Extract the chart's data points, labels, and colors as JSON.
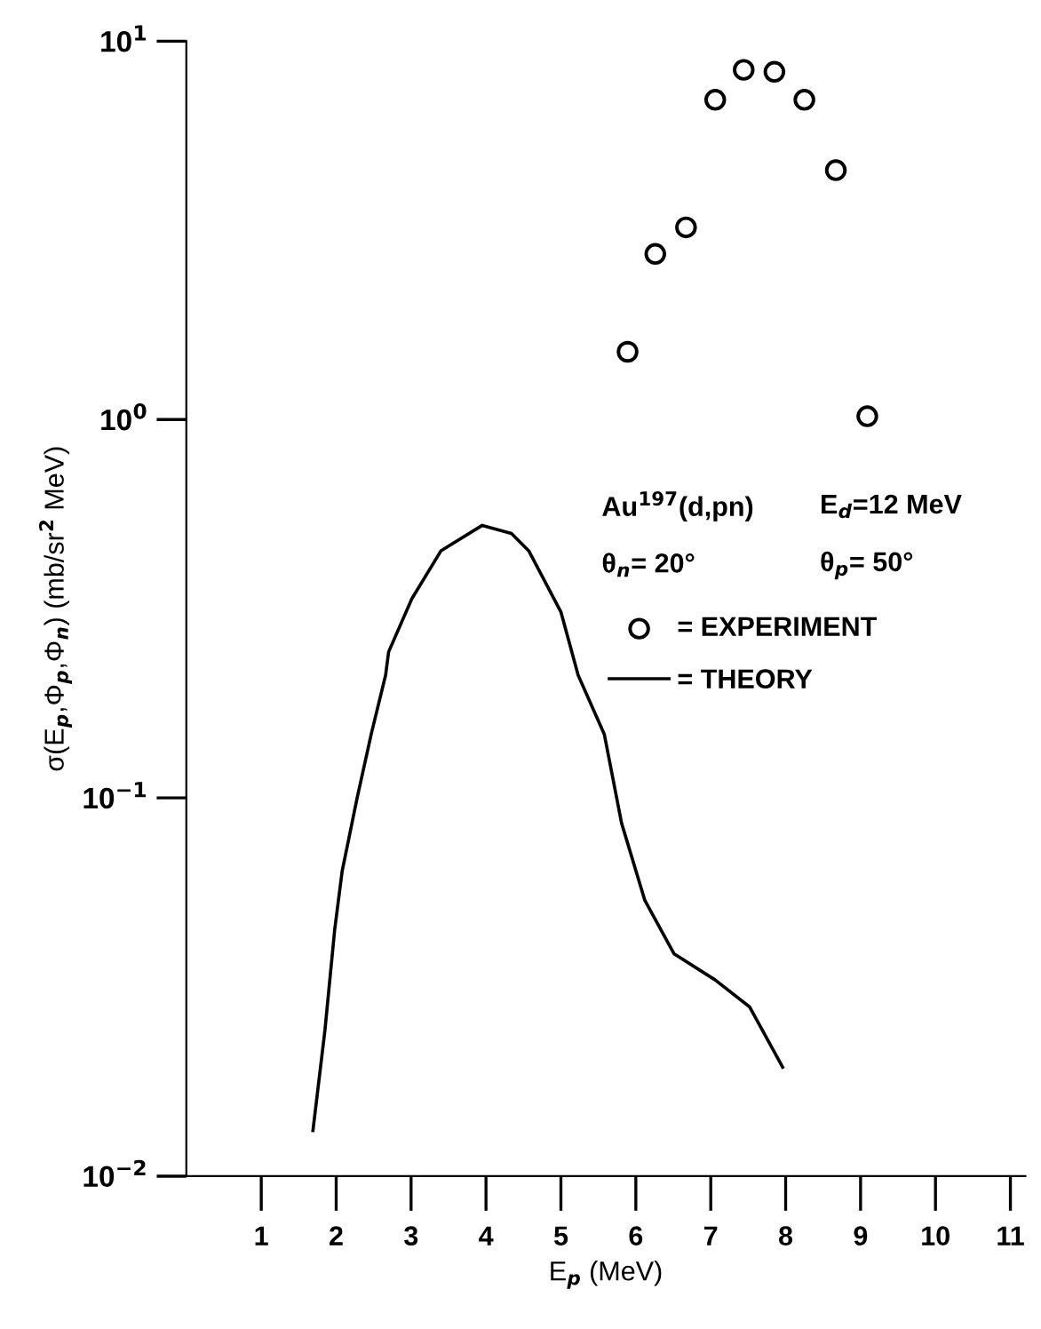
{
  "chart_data": {
    "type": "scatter",
    "xlabel": "E$_{p}$ (MeV)",
    "ylabel": "σ(E$_{p}$,Φ$_{p}$,Φ$_{n}$) (mb/sr$^{2}$ MeV)",
    "annotations": [
      "Au$^{197}$(d,pn)",
      "E$_{d}$=12 MeV",
      "θ$_{n}$= 20°",
      "θ$_{p}$= 50°"
    ],
    "series": [
      {
        "name": "= EXPERIMENT",
        "color": "#000000",
        "marker": "circle",
        "x": [
          5.89,
          6.26,
          6.67,
          7.06,
          7.44,
          7.85,
          8.25,
          8.67,
          9.09
        ],
        "values": [
          1.51,
          2.74,
          3.22,
          7.0,
          8.4,
          8.3,
          7.0,
          4.56,
          1.02
        ]
      },
      {
        "name": "= THEORY",
        "type": "line",
        "color": "#000000",
        "marker": "none",
        "line_style": "solid",
        "x": [
          1.69,
          1.85,
          1.98,
          2.08,
          2.28,
          2.47,
          2.66,
          2.7,
          3.01,
          3.4,
          3.95,
          4.34,
          4.57,
          5.0,
          5.23,
          5.58,
          5.81,
          6.12,
          6.51,
          7.06,
          7.52,
          7.96
        ],
        "values": [
          0.0132,
          0.0243,
          0.0448,
          0.064,
          0.1,
          0.148,
          0.211,
          0.243,
          0.336,
          0.45,
          0.525,
          0.5,
          0.45,
          0.31,
          0.211,
          0.147,
          0.0857,
          0.0536,
          0.0387,
          0.033,
          0.028,
          0.0194
        ]
      }
    ],
    "log": "y",
    "xlim": [
      0,
      11.2
    ],
    "ylim": [
      0.01,
      10
    ],
    "xticks": [
      1,
      2,
      3,
      4,
      5,
      6,
      7,
      8,
      9,
      10,
      11
    ],
    "yticks": [
      {
        "value": 0.01,
        "label": "10$^{−2}$"
      },
      {
        "value": 0.1,
        "label": "10$^{−1}$"
      },
      {
        "value": 1,
        "label": "10$^{0}$"
      },
      {
        "value": 10,
        "label": "10$^{1}$"
      }
    ],
    "grid": false,
    "legend": "right"
  }
}
